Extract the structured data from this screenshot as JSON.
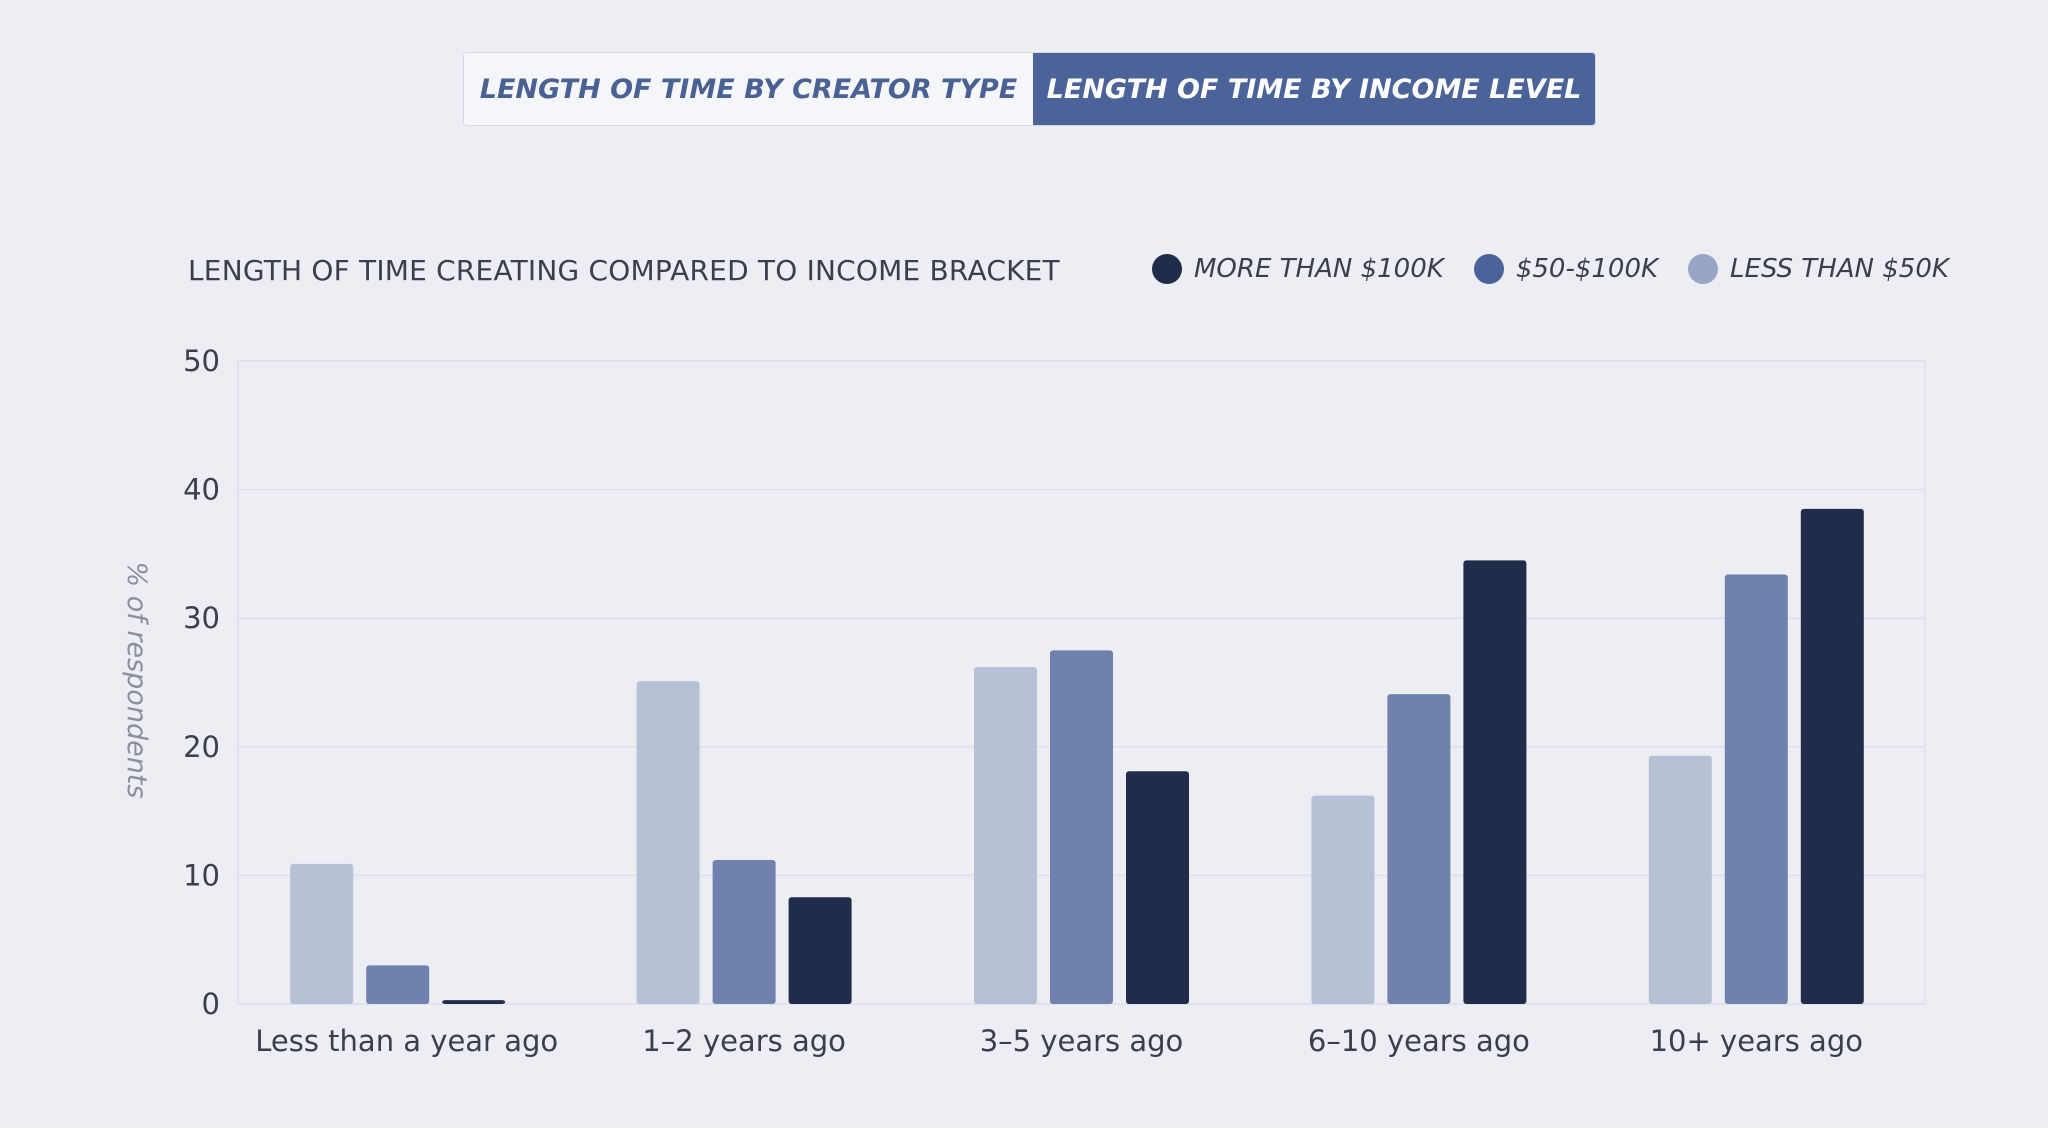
{
  "tabs": [
    {
      "label": "LENGTH OF TIME BY CREATOR TYPE",
      "active": false
    },
    {
      "label": "LENGTH OF TIME BY INCOME LEVEL",
      "active": true
    }
  ],
  "colors": {
    "more_than_100k": "#212c4a",
    "50_100k": "#6f81ad",
    "less_than_50k": "#b6c1d6",
    "active_tab": "#4c6399",
    "legend_dot_more_than_100k": "#212c4a",
    "legend_dot_50_100k": "#4c6399",
    "legend_dot_less_than_50k": "#97a6c6"
  },
  "chart_data": {
    "type": "bar",
    "title": "LENGTH OF TIME CREATING COMPARED TO INCOME BRACKET",
    "ylabel": "% of respondents",
    "xlabel": "",
    "ylim": [
      0,
      50
    ],
    "yticks": [
      "0",
      "10",
      "20",
      "30",
      "40",
      "50"
    ],
    "grid": true,
    "legend_position": "top-right",
    "legend": [
      "MORE THAN $100K",
      "$50-$100K",
      "LESS THAN $50K"
    ],
    "categories": [
      "Less than a year ago",
      "1–2 years ago",
      "3–5 years ago",
      "6–10 years ago",
      "10+ years ago"
    ],
    "series": [
      {
        "name": "LESS THAN $50K",
        "values": [
          10.9,
          25.1,
          26.2,
          16.2,
          19.3
        ]
      },
      {
        "name": "$50-$100K",
        "values": [
          3.0,
          11.2,
          27.5,
          24.1,
          33.4
        ]
      },
      {
        "name": "MORE THAN $100K",
        "values": [
          0.3,
          8.3,
          18.1,
          34.5,
          38.5
        ]
      }
    ]
  }
}
